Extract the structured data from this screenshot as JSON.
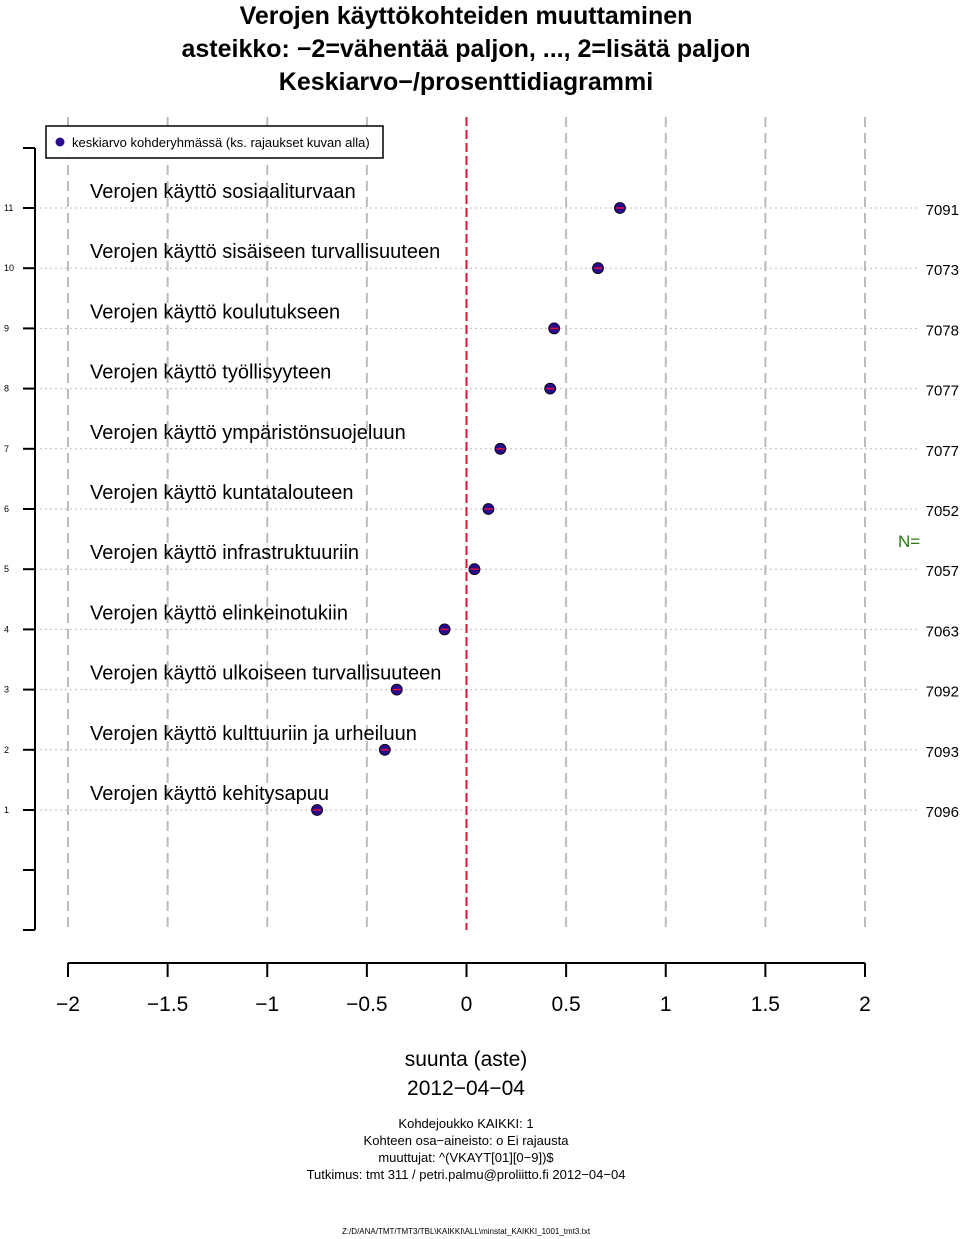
{
  "title": {
    "line1": "Verojen käyttökohteiden muuttaminen",
    "line2": "asteikko: −2=vähentää paljon, ..., 2=lisätä paljon",
    "line3": "Keskiarvo−/prosenttidiagrammi"
  },
  "legend": {
    "label": "keskiarvo kohderyhmässä (ks. rajaukset kuvan alla)"
  },
  "n_label": "N=",
  "colors": {
    "point_fill": "#2a0a8c",
    "point_mark": "#e0103a",
    "zero_line": "#e0103a",
    "n_label": "#2a7a10",
    "grid": "#bbbbbb"
  },
  "chart_data": {
    "type": "scatter",
    "xlabel": "suunta (aste)",
    "xlim": [
      -2,
      2
    ],
    "x_ticks": [
      "−2",
      "−1.5",
      "−1",
      "−0.5",
      "0",
      "0.5",
      "1",
      "1.5",
      "2"
    ],
    "x_tick_values": [
      -2,
      -1.5,
      -1,
      -0.5,
      0,
      0.5,
      1,
      1.5,
      2
    ],
    "y_ticks": [
      "1",
      "2",
      "3",
      "4",
      "5",
      "6",
      "7",
      "8",
      "9",
      "10",
      "11"
    ],
    "reference_line_x": 0,
    "grid": true,
    "legend_position": "top-left",
    "items": [
      {
        "rank": 11,
        "label": "Verojen käyttö sosiaaliturvaan",
        "mean": 0.77,
        "n": "7091"
      },
      {
        "rank": 10,
        "label": "Verojen käyttö sisäiseen turvallisuuteen",
        "mean": 0.66,
        "n": "7073"
      },
      {
        "rank": 9,
        "label": "Verojen käyttö koulutukseen",
        "mean": 0.44,
        "n": "7078"
      },
      {
        "rank": 8,
        "label": "Verojen käyttö työllisyyteen",
        "mean": 0.42,
        "n": "7077"
      },
      {
        "rank": 7,
        "label": "Verojen käyttö ympäristönsuojeluun",
        "mean": 0.17,
        "n": "7077"
      },
      {
        "rank": 6,
        "label": "Verojen käyttö kuntatalouteen",
        "mean": 0.11,
        "n": "7052"
      },
      {
        "rank": 5,
        "label": "Verojen käyttö infrastruktuuriin",
        "mean": 0.04,
        "n": "7057"
      },
      {
        "rank": 4,
        "label": "Verojen käyttö elinkeinotukiin",
        "mean": -0.11,
        "n": "7063"
      },
      {
        "rank": 3,
        "label": "Verojen käyttö ulkoiseen turvallisuuteen",
        "mean": -0.35,
        "n": "7092"
      },
      {
        "rank": 2,
        "label": "Verojen käyttö kulttuuriin ja urheiluun",
        "mean": -0.41,
        "n": "7093"
      },
      {
        "rank": 1,
        "label": "Verojen käyttö kehitysapuu",
        "mean": -0.75,
        "n": "7096"
      }
    ]
  },
  "date": "2012−04−04",
  "footer": {
    "line1": "Kohdejoukko KAIKKI: 1",
    "line2": "Kohteen osa−aineisto: o Ei rajausta",
    "line3": "muuttujat: ^(VKAYT[01][0−9])$",
    "line4": "Tutkimus: tmt 311 / petri.palmu@proliitto.fi 2012−04−04",
    "path": "Z:/D/ANA/TMT/TMT3/TBL\\KAIKKI\\ALL\\minstat_KAIKKI_1001_tmt3.txt"
  }
}
